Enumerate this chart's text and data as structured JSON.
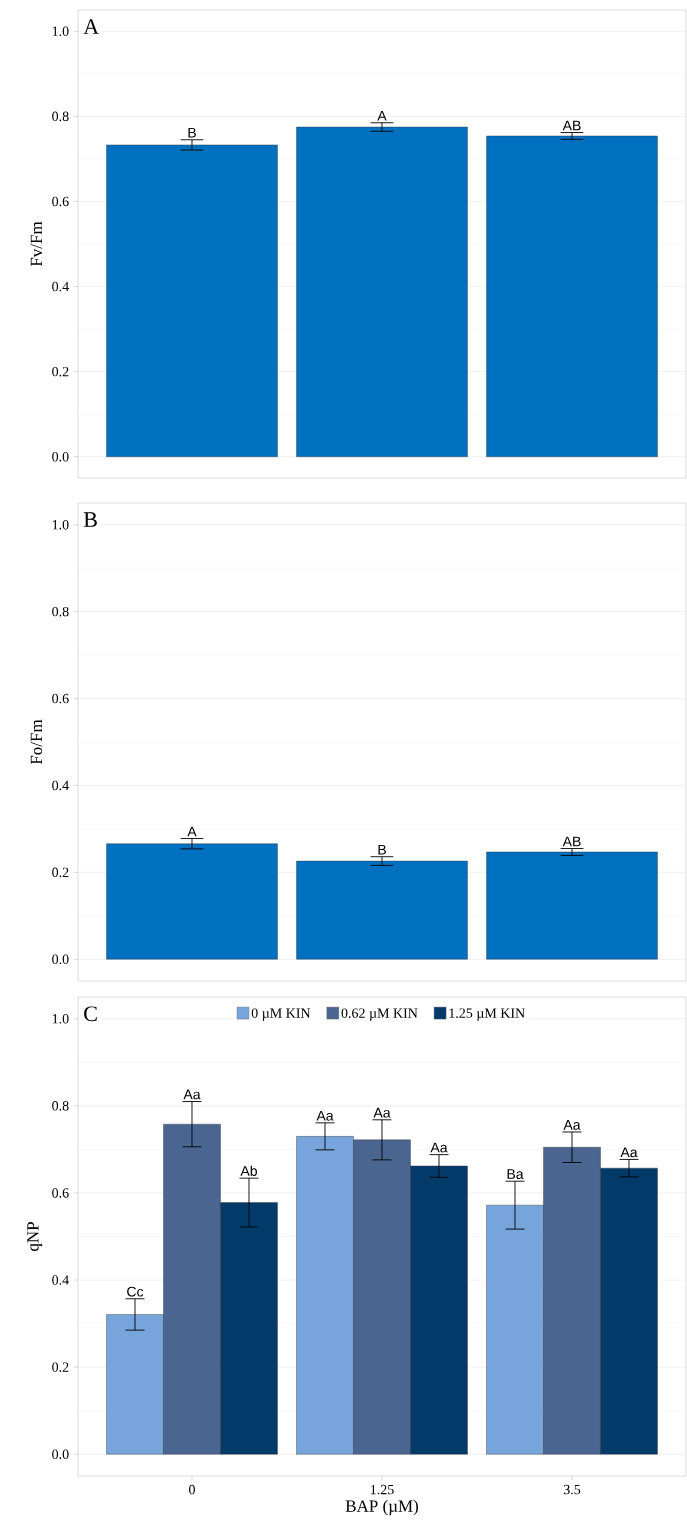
{
  "chart_data": [
    {
      "type": "bar",
      "title": "A",
      "ylabel": "Fv/Fm",
      "categories": [
        null,
        null,
        null
      ],
      "values": [
        0.733,
        0.775,
        0.754
      ],
      "errors": [
        0.012,
        0.01,
        0.008
      ],
      "color": "#0070c0",
      "ylim": [
        -0.05,
        1.05
      ],
      "yticks": [
        {
          "value": 0,
          "label": "0.0"
        },
        {
          "value": 0.2,
          "label": "0.2"
        },
        {
          "value": 0.4,
          "label": "0.4"
        },
        {
          "value": 0.6,
          "label": "0.6"
        },
        {
          "value": 0.8,
          "label": "0.8"
        },
        {
          "value": 1,
          "label": "1.0"
        }
      ],
      "grid": "y",
      "tick_labels": "y",
      "annotations": [
        "B",
        "A",
        "AB"
      ]
    },
    {
      "type": "bar",
      "title": "B",
      "ylabel": "Fo/Fm",
      "categories": [
        null,
        null,
        null
      ],
      "values": [
        0.266,
        0.226,
        0.247
      ],
      "errors": [
        0.012,
        0.01,
        0.008
      ],
      "color": "#0070c0",
      "ylim": [
        -0.05,
        1.05
      ],
      "yticks": [
        {
          "value": 0,
          "label": "0.0"
        },
        {
          "value": 0.2,
          "label": "0.2"
        },
        {
          "value": 0.4,
          "label": "0.4"
        },
        {
          "value": 0.6,
          "label": "0.6"
        },
        {
          "value": 0.8,
          "label": "0.8"
        },
        {
          "value": 1,
          "label": "1.0"
        }
      ],
      "grid": "y",
      "tick_labels": "y",
      "annotations": [
        "A",
        "B",
        "AB"
      ]
    },
    {
      "type": "bar",
      "title": "C",
      "xlabel": "BAP (µM)",
      "ylabel": "qNP",
      "categories": [
        "0",
        "1.25",
        "3.5"
      ],
      "series": [
        {
          "name": "0 µM KIN",
          "color": "#77a5db",
          "values": [
            0.321,
            0.73,
            0.572
          ],
          "errors": [
            0.036,
            0.031,
            0.055
          ]
        },
        {
          "name": "0.62 µM KIN",
          "color": "#4a6590",
          "values": [
            0.758,
            0.722,
            0.705
          ],
          "errors": [
            0.052,
            0.046,
            0.035
          ]
        },
        {
          "name": "1.25 µM KIN",
          "color": "#023a6a",
          "values": [
            0.578,
            0.662,
            0.657
          ],
          "errors": [
            0.056,
            0.026,
            0.02
          ]
        }
      ],
      "ylim": [
        -0.05,
        1.05
      ],
      "yticks": [
        {
          "value": 0,
          "label": "0.0"
        },
        {
          "value": 0.2,
          "label": "0.2"
        },
        {
          "value": 0.4,
          "label": "0.4"
        },
        {
          "value": 0.6,
          "label": "0.6"
        },
        {
          "value": 0.8,
          "label": "0.8"
        },
        {
          "value": 1,
          "label": "1.0"
        }
      ],
      "grid": "y",
      "legend": "top",
      "annotations": [
        "Cc",
        "Aa",
        "Ab",
        "Aa",
        "Aa",
        "Aa",
        "Ba",
        "Aa",
        "Aa"
      ]
    }
  ]
}
